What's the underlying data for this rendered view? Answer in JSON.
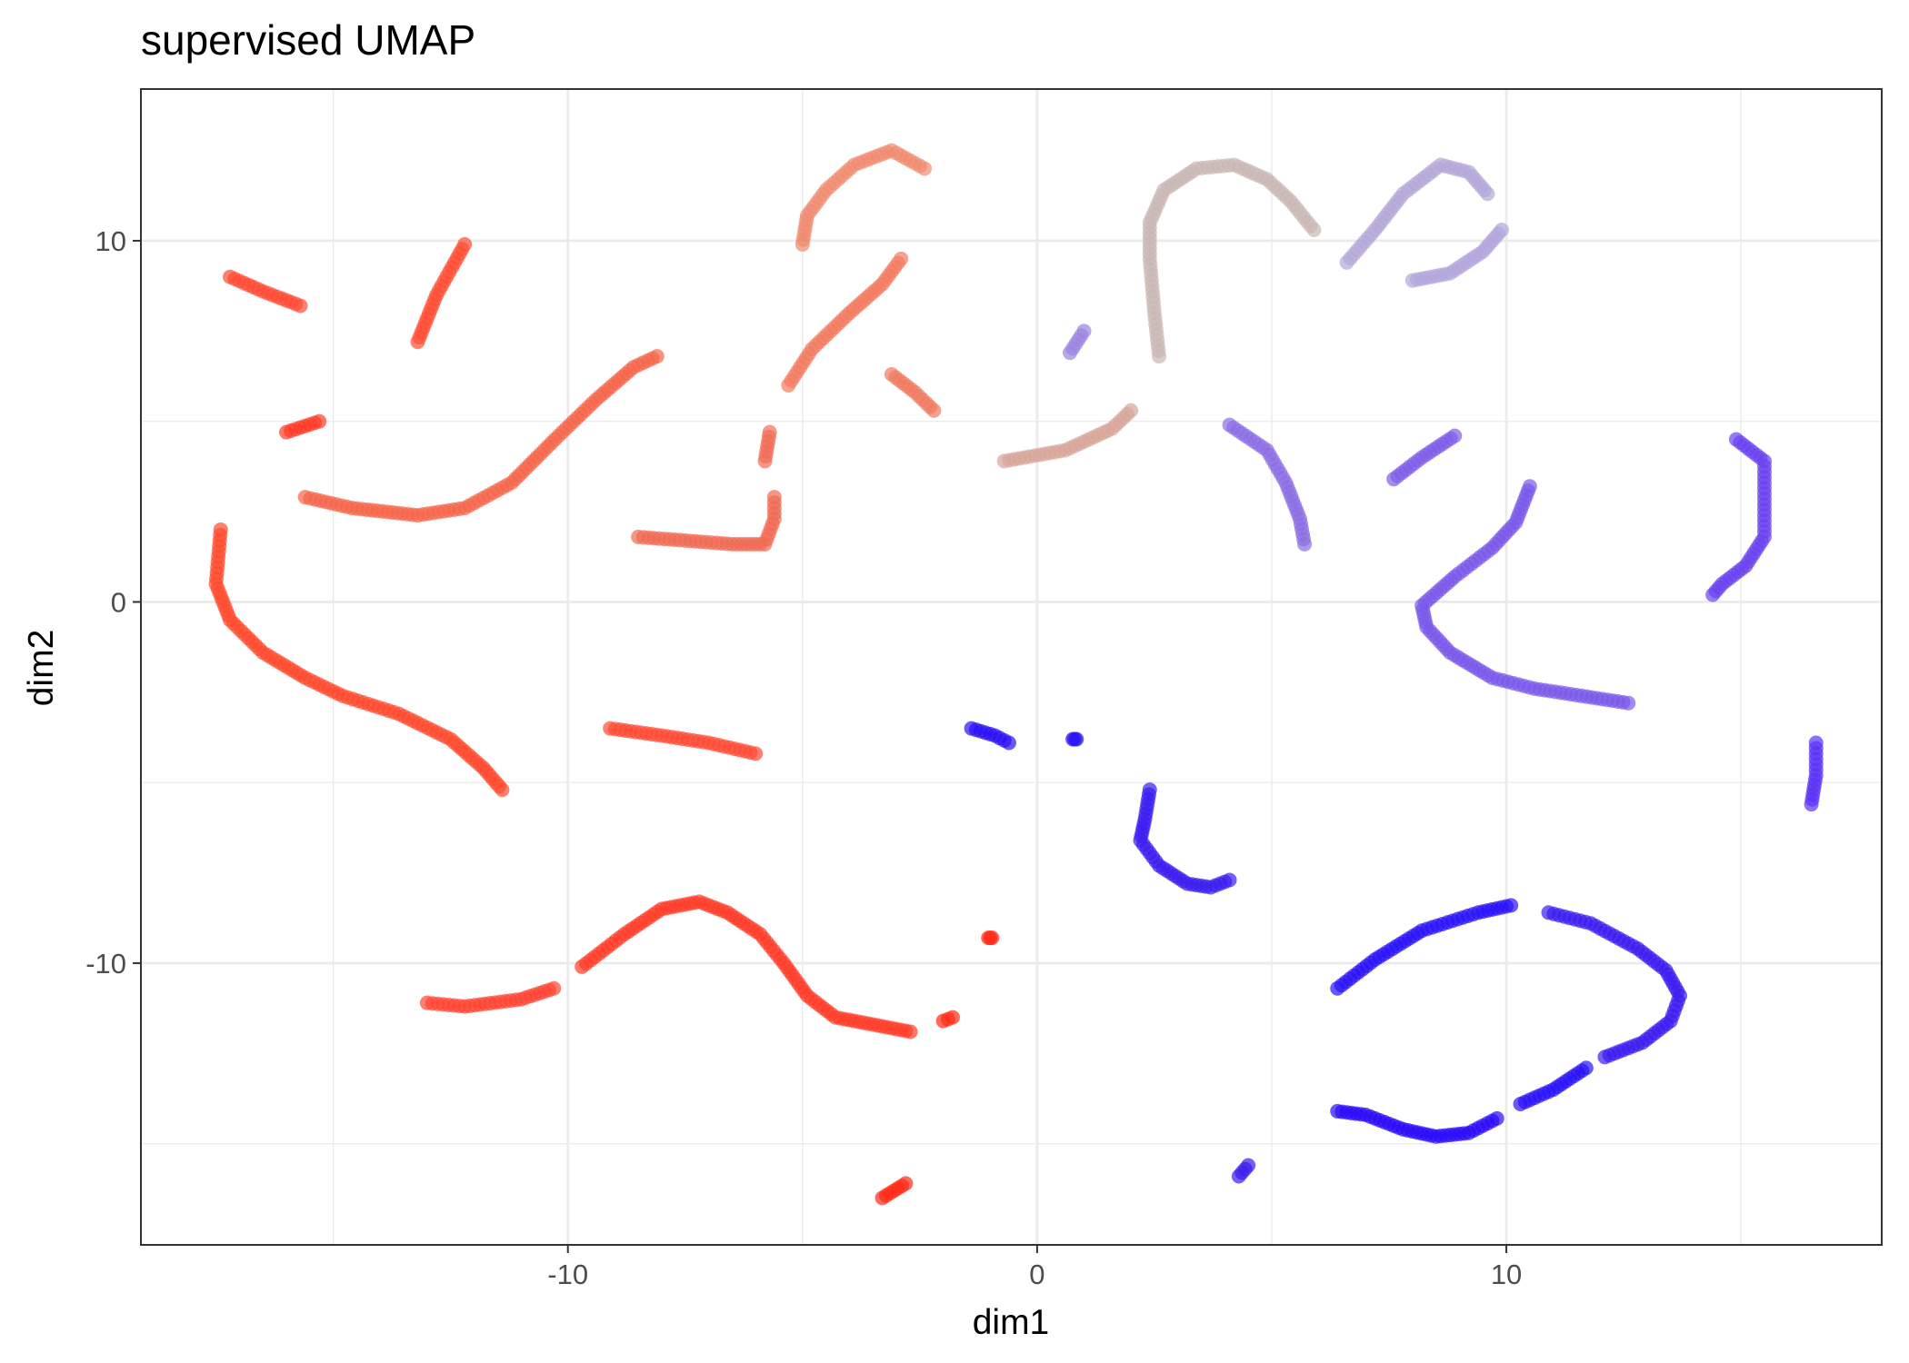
{
  "chart_data": {
    "type": "scatter",
    "title": "supervised UMAP",
    "xlabel": "dim1",
    "ylabel": "dim2",
    "xlim": [
      -19.1,
      18.0
    ],
    "ylim": [
      -17.8,
      14.2
    ],
    "x_major_ticks": [
      -10,
      0,
      10
    ],
    "x_tick_labels": [
      "-10",
      "0",
      "10"
    ],
    "y_major_ticks": [
      -10,
      0,
      10
    ],
    "y_tick_labels": [
      "-10",
      "0",
      "10"
    ],
    "x_minor_ticks": [
      -15,
      -5,
      5,
      15
    ],
    "y_minor_ticks": [
      -15,
      -5,
      5
    ],
    "grid": true,
    "legend": "none",
    "color_scale": {
      "low": "#ff0000",
      "mid": "#c8c8c8",
      "high": "#0000ff"
    },
    "point_alpha": 0.7,
    "curves": [
      {
        "color": "#ff4a33",
        "points": [
          [
            -17.2,
            9.0
          ],
          [
            -16.5,
            8.6
          ],
          [
            -15.7,
            8.2
          ]
        ]
      },
      {
        "color": "#ff4d33",
        "points": [
          [
            -13.2,
            7.2
          ],
          [
            -12.8,
            8.5
          ],
          [
            -12.2,
            9.9
          ]
        ]
      },
      {
        "color": "#ff3a25",
        "points": [
          [
            -16.0,
            4.7
          ],
          [
            -15.3,
            5.0
          ]
        ]
      },
      {
        "color": "#f5654a",
        "points": [
          [
            -15.6,
            2.9
          ],
          [
            -14.6,
            2.6
          ],
          [
            -13.2,
            2.4
          ],
          [
            -12.2,
            2.6
          ],
          [
            -11.2,
            3.3
          ],
          [
            -10.2,
            4.6
          ],
          [
            -9.4,
            5.6
          ],
          [
            -8.6,
            6.5
          ],
          [
            -8.1,
            6.8
          ]
        ]
      },
      {
        "color": "#ff4a2e",
        "points": [
          [
            -17.4,
            2.0
          ],
          [
            -17.5,
            0.5
          ],
          [
            -17.2,
            -0.5
          ],
          [
            -16.5,
            -1.4
          ],
          [
            -15.6,
            -2.1
          ],
          [
            -14.8,
            -2.6
          ],
          [
            -13.6,
            -3.1
          ],
          [
            -12.5,
            -3.8
          ],
          [
            -11.8,
            -4.6
          ],
          [
            -11.4,
            -5.2
          ]
        ]
      },
      {
        "color": "#ff4a33",
        "points": [
          [
            -9.1,
            -3.5
          ],
          [
            -8.0,
            -3.7
          ],
          [
            -7.0,
            -3.9
          ],
          [
            -6.0,
            -4.2
          ]
        ]
      },
      {
        "color": "#ff4433",
        "points": [
          [
            -13.0,
            -11.1
          ],
          [
            -12.2,
            -11.2
          ],
          [
            -11.0,
            -11.0
          ],
          [
            -10.3,
            -10.7
          ]
        ]
      },
      {
        "color": "#ff3c28",
        "points": [
          [
            -9.7,
            -10.1
          ],
          [
            -8.8,
            -9.2
          ],
          [
            -8.0,
            -8.5
          ],
          [
            -7.2,
            -8.3
          ],
          [
            -6.6,
            -8.6
          ],
          [
            -5.9,
            -9.2
          ],
          [
            -5.4,
            -10.0
          ],
          [
            -4.9,
            -10.9
          ],
          [
            -4.3,
            -11.5
          ],
          [
            -3.5,
            -11.7
          ],
          [
            -2.7,
            -11.9
          ]
        ]
      },
      {
        "color": "#ff2a15",
        "points": [
          [
            -2.0,
            -11.6
          ],
          [
            -1.8,
            -11.5
          ]
        ]
      },
      {
        "color": "#ff2a15",
        "points": [
          [
            -1.0,
            -9.3
          ]
        ]
      },
      {
        "color": "#ff2a15",
        "points": [
          [
            -3.3,
            -16.5
          ],
          [
            -2.8,
            -16.1
          ]
        ]
      },
      {
        "color": "#f06a53",
        "points": [
          [
            -8.5,
            1.8
          ],
          [
            -7.5,
            1.7
          ],
          [
            -6.5,
            1.6
          ],
          [
            -5.8,
            1.6
          ],
          [
            -5.6,
            2.3
          ],
          [
            -5.6,
            2.9
          ]
        ]
      },
      {
        "color": "#f06e58",
        "points": [
          [
            -5.8,
            3.9
          ],
          [
            -5.7,
            4.7
          ]
        ]
      },
      {
        "color": "#f27a60",
        "points": [
          [
            -5.3,
            6.0
          ],
          [
            -4.8,
            7.0
          ],
          [
            -4.0,
            8.0
          ],
          [
            -3.3,
            8.8
          ],
          [
            -2.9,
            9.5
          ]
        ]
      },
      {
        "color": "#f07a60",
        "points": [
          [
            -3.1,
            6.3
          ],
          [
            -2.6,
            5.8
          ],
          [
            -2.2,
            5.3
          ]
        ]
      },
      {
        "color": "#f08a70",
        "points": [
          [
            -5.0,
            9.9
          ],
          [
            -4.9,
            10.7
          ],
          [
            -4.5,
            11.4
          ],
          [
            -3.9,
            12.1
          ],
          [
            -3.1,
            12.5
          ],
          [
            -2.4,
            12.0
          ]
        ]
      },
      {
        "color": "#d7a598",
        "points": [
          [
            -0.7,
            3.9
          ],
          [
            0.6,
            4.2
          ],
          [
            1.6,
            4.8
          ],
          [
            2.0,
            5.3
          ]
        ]
      },
      {
        "color": "#c9b8b4",
        "points": [
          [
            2.6,
            6.8
          ],
          [
            2.5,
            8.0
          ],
          [
            2.4,
            9.5
          ],
          [
            2.4,
            10.5
          ],
          [
            2.7,
            11.4
          ],
          [
            3.4,
            12.0
          ],
          [
            4.2,
            12.1
          ],
          [
            4.9,
            11.7
          ],
          [
            5.4,
            11.1
          ],
          [
            5.9,
            10.3
          ]
        ]
      },
      {
        "color": "#b4a8d8",
        "points": [
          [
            6.6,
            9.4
          ],
          [
            7.2,
            10.3
          ],
          [
            7.8,
            11.3
          ],
          [
            8.6,
            12.1
          ],
          [
            9.2,
            11.9
          ],
          [
            9.6,
            11.3
          ]
        ]
      },
      {
        "color": "#b2a5dc",
        "points": [
          [
            8.0,
            8.9
          ],
          [
            8.8,
            9.1
          ],
          [
            9.5,
            9.7
          ],
          [
            9.9,
            10.3
          ]
        ]
      },
      {
        "color": "#9b83e0",
        "points": [
          [
            0.7,
            6.9
          ],
          [
            1.0,
            7.5
          ]
        ]
      },
      {
        "color": "#8b6ee4",
        "points": [
          [
            4.1,
            4.9
          ],
          [
            4.9,
            4.2
          ],
          [
            5.3,
            3.3
          ],
          [
            5.6,
            2.3
          ],
          [
            5.7,
            1.6
          ]
        ]
      },
      {
        "color": "#7f5ce8",
        "points": [
          [
            7.6,
            3.4
          ],
          [
            8.2,
            4.0
          ],
          [
            8.9,
            4.6
          ]
        ]
      },
      {
        "color": "#7b58ea",
        "points": [
          [
            10.5,
            3.2
          ],
          [
            10.2,
            2.2
          ],
          [
            9.7,
            1.5
          ],
          [
            8.9,
            0.7
          ],
          [
            8.2,
            -0.1
          ],
          [
            8.3,
            -0.7
          ],
          [
            8.8,
            -1.4
          ],
          [
            9.7,
            -2.1
          ],
          [
            10.6,
            -2.4
          ],
          [
            11.6,
            -2.6
          ],
          [
            12.6,
            -2.8
          ]
        ]
      },
      {
        "color": "#6a42f0",
        "points": [
          [
            14.9,
            4.5
          ],
          [
            15.5,
            3.9
          ],
          [
            15.5,
            3.0
          ],
          [
            15.5,
            1.8
          ],
          [
            15.1,
            1.0
          ],
          [
            14.6,
            0.5
          ],
          [
            14.4,
            0.2
          ]
        ]
      },
      {
        "color": "#5a32f5",
        "points": [
          [
            16.6,
            -3.9
          ],
          [
            16.6,
            -4.8
          ],
          [
            16.5,
            -5.6
          ]
        ]
      },
      {
        "color": "#2a10f5",
        "points": [
          [
            -1.4,
            -3.5
          ],
          [
            -0.9,
            -3.7
          ],
          [
            -0.6,
            -3.9
          ]
        ]
      },
      {
        "color": "#2a10f5",
        "points": [
          [
            0.8,
            -3.8
          ]
        ]
      },
      {
        "color": "#3a1cf0",
        "points": [
          [
            2.4,
            -5.2
          ],
          [
            2.3,
            -6.0
          ],
          [
            2.2,
            -6.6
          ],
          [
            2.6,
            -7.3
          ],
          [
            3.2,
            -7.8
          ],
          [
            3.7,
            -7.9
          ],
          [
            4.1,
            -7.7
          ]
        ]
      },
      {
        "color": "#3a1cf0",
        "points": [
          [
            4.3,
            -15.9
          ],
          [
            4.5,
            -15.6
          ]
        ]
      },
      {
        "color": "#2a12f8",
        "points": [
          [
            6.4,
            -10.7
          ],
          [
            7.2,
            -9.9
          ],
          [
            8.2,
            -9.1
          ],
          [
            9.4,
            -8.6
          ],
          [
            10.1,
            -8.4
          ]
        ]
      },
      {
        "color": "#3a1cf0",
        "points": [
          [
            10.9,
            -8.6
          ],
          [
            11.8,
            -8.9
          ],
          [
            12.8,
            -9.6
          ],
          [
            13.4,
            -10.2
          ],
          [
            13.7,
            -10.9
          ],
          [
            13.5,
            -11.6
          ],
          [
            12.9,
            -12.2
          ],
          [
            12.1,
            -12.6
          ]
        ]
      },
      {
        "color": "#2a12f8",
        "points": [
          [
            11.7,
            -12.9
          ],
          [
            11.0,
            -13.5
          ],
          [
            10.3,
            -13.9
          ]
        ]
      },
      {
        "color": "#2a0af8",
        "points": [
          [
            9.8,
            -14.3
          ],
          [
            9.2,
            -14.7
          ],
          [
            8.5,
            -14.8
          ],
          [
            7.8,
            -14.6
          ],
          [
            7.0,
            -14.2
          ],
          [
            6.4,
            -14.1
          ]
        ]
      }
    ]
  }
}
